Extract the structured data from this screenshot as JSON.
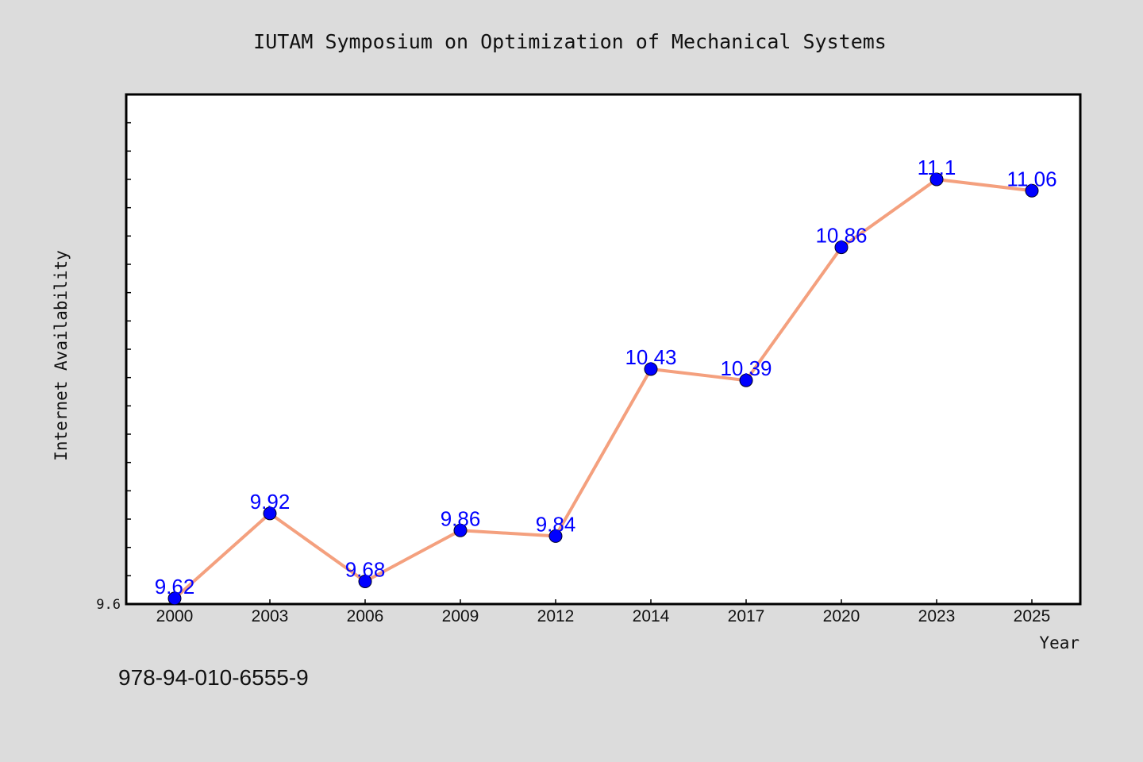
{
  "chart_data": {
    "type": "line",
    "title": "IUTAM Symposium on Optimization of Mechanical Systems",
    "xlabel": "Year",
    "ylabel": "Internet Availability",
    "categories": [
      "2000",
      "2003",
      "2006",
      "2009",
      "2012",
      "2014",
      "2017",
      "2020",
      "2023",
      "2025"
    ],
    "series": [
      {
        "values": [
          9.62,
          9.92,
          9.68,
          9.86,
          9.84,
          10.43,
          10.39,
          10.86,
          11.1,
          11.06
        ],
        "labels": [
          "9.62",
          "9.92",
          "9.68",
          "9.86",
          "9.84",
          "10.43",
          "10.39",
          "10.86",
          "11.1",
          "11.06"
        ]
      }
    ],
    "ylim": [
      9.6,
      11.4
    ],
    "yticks": [
      "9.6"
    ],
    "grid": false,
    "legend": "none",
    "line_color": "#f4a07e",
    "marker_color": "#0000ff",
    "label_color": "#0000ff"
  },
  "footnote": "978-94-010-6555-9",
  "colors": {
    "background": "#dcdcdc",
    "plot_background": "#ffffff"
  }
}
